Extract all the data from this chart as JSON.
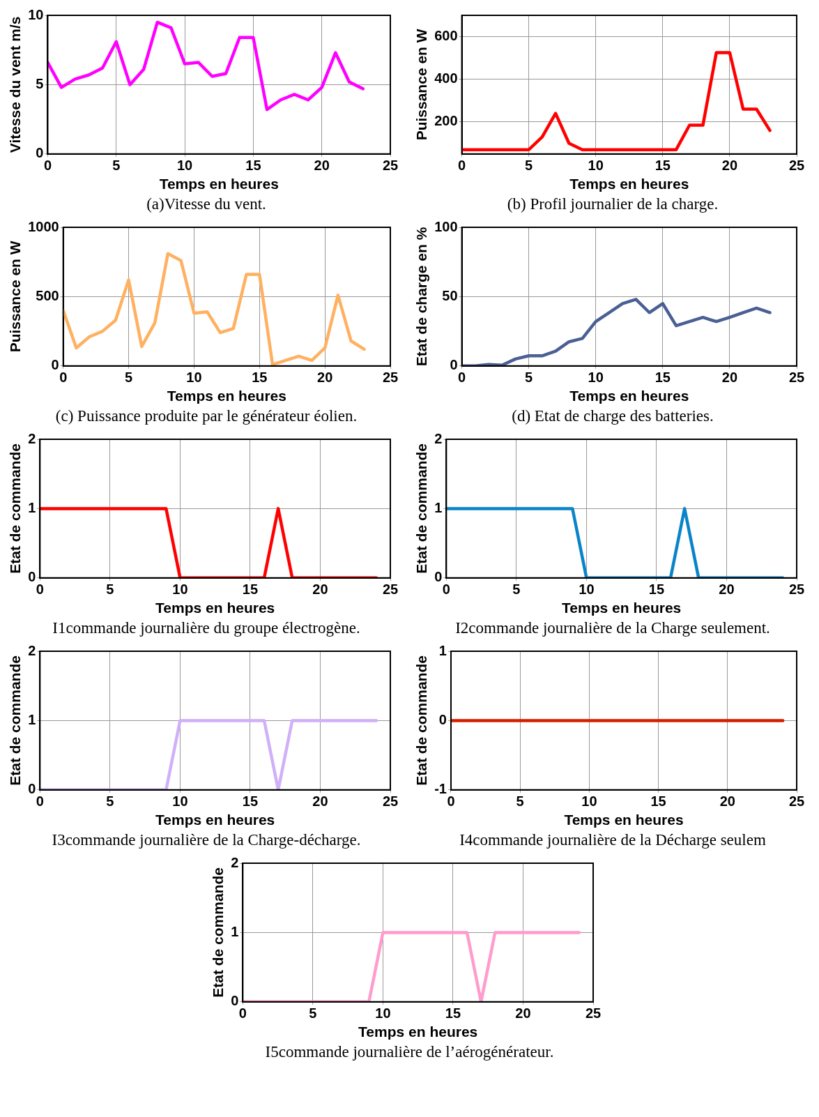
{
  "chart_data": [
    {
      "type": "line",
      "xlabel": "Temps en heures",
      "ylabel": "Vitesse du vent m/s",
      "x": [
        0,
        1,
        2,
        3,
        4,
        5,
        6,
        7,
        8,
        9,
        10,
        11,
        12,
        13,
        14,
        15,
        16,
        17,
        18,
        19,
        20,
        21,
        22,
        23
      ],
      "series": [
        {
          "color": "#ff00ff",
          "values": [
            6.6,
            4.8,
            5.4,
            5.7,
            6.2,
            8.1,
            5.0,
            6.1,
            9.5,
            9.1,
            6.5,
            6.6,
            5.6,
            5.8,
            8.4,
            8.4,
            3.2,
            3.9,
            4.3,
            3.9,
            4.8,
            7.3,
            5.2,
            4.7
          ]
        }
      ],
      "xlim": [
        0,
        25
      ],
      "xticks": [
        0,
        5,
        10,
        15,
        20,
        25
      ],
      "ylim": [
        0,
        10
      ],
      "yticks": [
        0,
        5,
        10
      ],
      "grid": true,
      "annotations": [
        "(a)Vitesse du vent."
      ]
    },
    {
      "type": "line",
      "xlabel": "Temps en heures",
      "ylabel": "Puissance en W",
      "x": [
        0,
        1,
        2,
        3,
        4,
        5,
        6,
        7,
        8,
        9,
        10,
        11,
        12,
        13,
        14,
        15,
        16,
        17,
        18,
        19,
        20,
        21,
        22,
        23
      ],
      "series": [
        {
          "color": "#ff0000",
          "values": [
            70,
            70,
            70,
            70,
            70,
            70,
            130,
            240,
            100,
            70,
            70,
            70,
            70,
            70,
            70,
            70,
            70,
            185,
            185,
            525,
            525,
            260,
            260,
            160
          ]
        }
      ],
      "xlim": [
        0,
        25
      ],
      "xticks": [
        0,
        5,
        10,
        15,
        20,
        25
      ],
      "ylim": [
        50,
        700
      ],
      "yticks": [
        200,
        400,
        600
      ],
      "grid": true,
      "annotations": [
        "(b)  Profil journalier de la charge."
      ]
    },
    {
      "type": "line",
      "xlabel": "Temps en heures",
      "ylabel": "Puissance en W",
      "x": [
        0,
        1,
        2,
        3,
        4,
        5,
        6,
        7,
        8,
        9,
        10,
        11,
        12,
        13,
        14,
        15,
        16,
        17,
        18,
        19,
        20,
        21,
        22,
        23
      ],
      "series": [
        {
          "color": "#ffb060",
          "values": [
            400,
            130,
            210,
            250,
            330,
            620,
            140,
            310,
            810,
            760,
            380,
            390,
            240,
            270,
            660,
            660,
            10,
            40,
            70,
            40,
            130,
            510,
            180,
            120
          ]
        }
      ],
      "xlim": [
        0,
        25
      ],
      "xticks": [
        0,
        5,
        10,
        15,
        20,
        25
      ],
      "ylim": [
        0,
        1000
      ],
      "yticks": [
        0,
        500,
        1000
      ],
      "grid": true,
      "annotations": [
        "(c) Puissance produite par le générateur éolien."
      ]
    },
    {
      "type": "line",
      "xlabel": "Temps en heures",
      "ylabel": "Etat de charge en %",
      "x": [
        0,
        1,
        2,
        3,
        4,
        5,
        6,
        7,
        8,
        9,
        10,
        11,
        12,
        13,
        14,
        15,
        16,
        17,
        18,
        19,
        20,
        21,
        22,
        23
      ],
      "series": [
        {
          "color": "#4a5f94",
          "values": [
            0,
            0,
            1,
            0.5,
            5,
            7.3,
            7.3,
            10.7,
            17.4,
            19.8,
            32,
            38.5,
            45,
            48,
            38.5,
            45,
            29,
            32,
            35,
            32,
            35,
            38.5,
            41.7,
            38.5
          ]
        }
      ],
      "xlim": [
        0,
        25
      ],
      "xticks": [
        0,
        5,
        10,
        15,
        20,
        25
      ],
      "ylim": [
        0,
        100
      ],
      "yticks": [
        0,
        50,
        100
      ],
      "grid": true,
      "annotations": [
        "(d) Etat de charge des batteries."
      ]
    },
    {
      "type": "line",
      "xlabel": "Temps en heures",
      "ylabel": "Etat de commande",
      "x": [
        0,
        9,
        10,
        16,
        17,
        18,
        24
      ],
      "series": [
        {
          "color": "#ff0000",
          "values": [
            1,
            1,
            0,
            0,
            1,
            0,
            0
          ]
        }
      ],
      "xlim": [
        0,
        25
      ],
      "xticks": [
        0,
        5,
        10,
        15,
        20,
        25
      ],
      "ylim": [
        0,
        2
      ],
      "yticks": [
        0,
        1,
        2
      ],
      "grid": true,
      "annotations": [
        "I1commande journalière du groupe électrogène."
      ]
    },
    {
      "type": "line",
      "xlabel": "Temps en heures",
      "ylabel": "Etat de commande",
      "x": [
        0,
        9,
        10,
        16,
        17,
        18,
        24
      ],
      "series": [
        {
          "color": "#0a84c8",
          "values": [
            1,
            1,
            0,
            0,
            1,
            0,
            0
          ]
        }
      ],
      "xlim": [
        0,
        25
      ],
      "xticks": [
        0,
        5,
        10,
        15,
        20,
        25
      ],
      "ylim": [
        0,
        2
      ],
      "yticks": [
        0,
        1,
        2
      ],
      "grid": true,
      "annotations": [
        "I2commande journalière de la Charge seulement."
      ]
    },
    {
      "type": "line",
      "xlabel": "Temps en heures",
      "ylabel": "Etat de commande",
      "x": [
        0,
        9,
        10,
        16,
        17,
        18,
        24
      ],
      "series": [
        {
          "color": "#d0b0f8",
          "values": [
            0,
            0,
            1,
            1,
            0,
            1,
            1
          ]
        }
      ],
      "xlim": [
        0,
        25
      ],
      "xticks": [
        0,
        5,
        10,
        15,
        20,
        25
      ],
      "ylim": [
        0,
        2
      ],
      "yticks": [
        0,
        1,
        2
      ],
      "grid": true,
      "annotations": [
        "I3commande journalière de la Charge-décharge."
      ]
    },
    {
      "type": "line",
      "xlabel": "Temps en heures",
      "ylabel": "Etat de commande",
      "x": [
        0,
        24
      ],
      "series": [
        {
          "color": "#d42000",
          "values": [
            0,
            0
          ]
        }
      ],
      "xlim": [
        0,
        25
      ],
      "xticks": [
        0,
        5,
        10,
        15,
        20,
        25
      ],
      "ylim": [
        -1,
        1
      ],
      "yticks": [
        -1,
        0,
        1
      ],
      "grid": true,
      "annotations": [
        "I4commande journalière de la Décharge seulem"
      ]
    },
    {
      "type": "line",
      "xlabel": "Temps en heures",
      "ylabel": "Etat de commande",
      "x": [
        0,
        9,
        10,
        16,
        17,
        18,
        24
      ],
      "series": [
        {
          "color": "#ff9ccc",
          "values": [
            0,
            0,
            1,
            1,
            0,
            1,
            1
          ]
        }
      ],
      "xlim": [
        0,
        25
      ],
      "xticks": [
        0,
        5,
        10,
        15,
        20,
        25
      ],
      "ylim": [
        0,
        2
      ],
      "yticks": [
        0,
        1,
        2
      ],
      "grid": true,
      "annotations": [
        "I5commande journalière de l’aérogénérateur."
      ]
    }
  ]
}
